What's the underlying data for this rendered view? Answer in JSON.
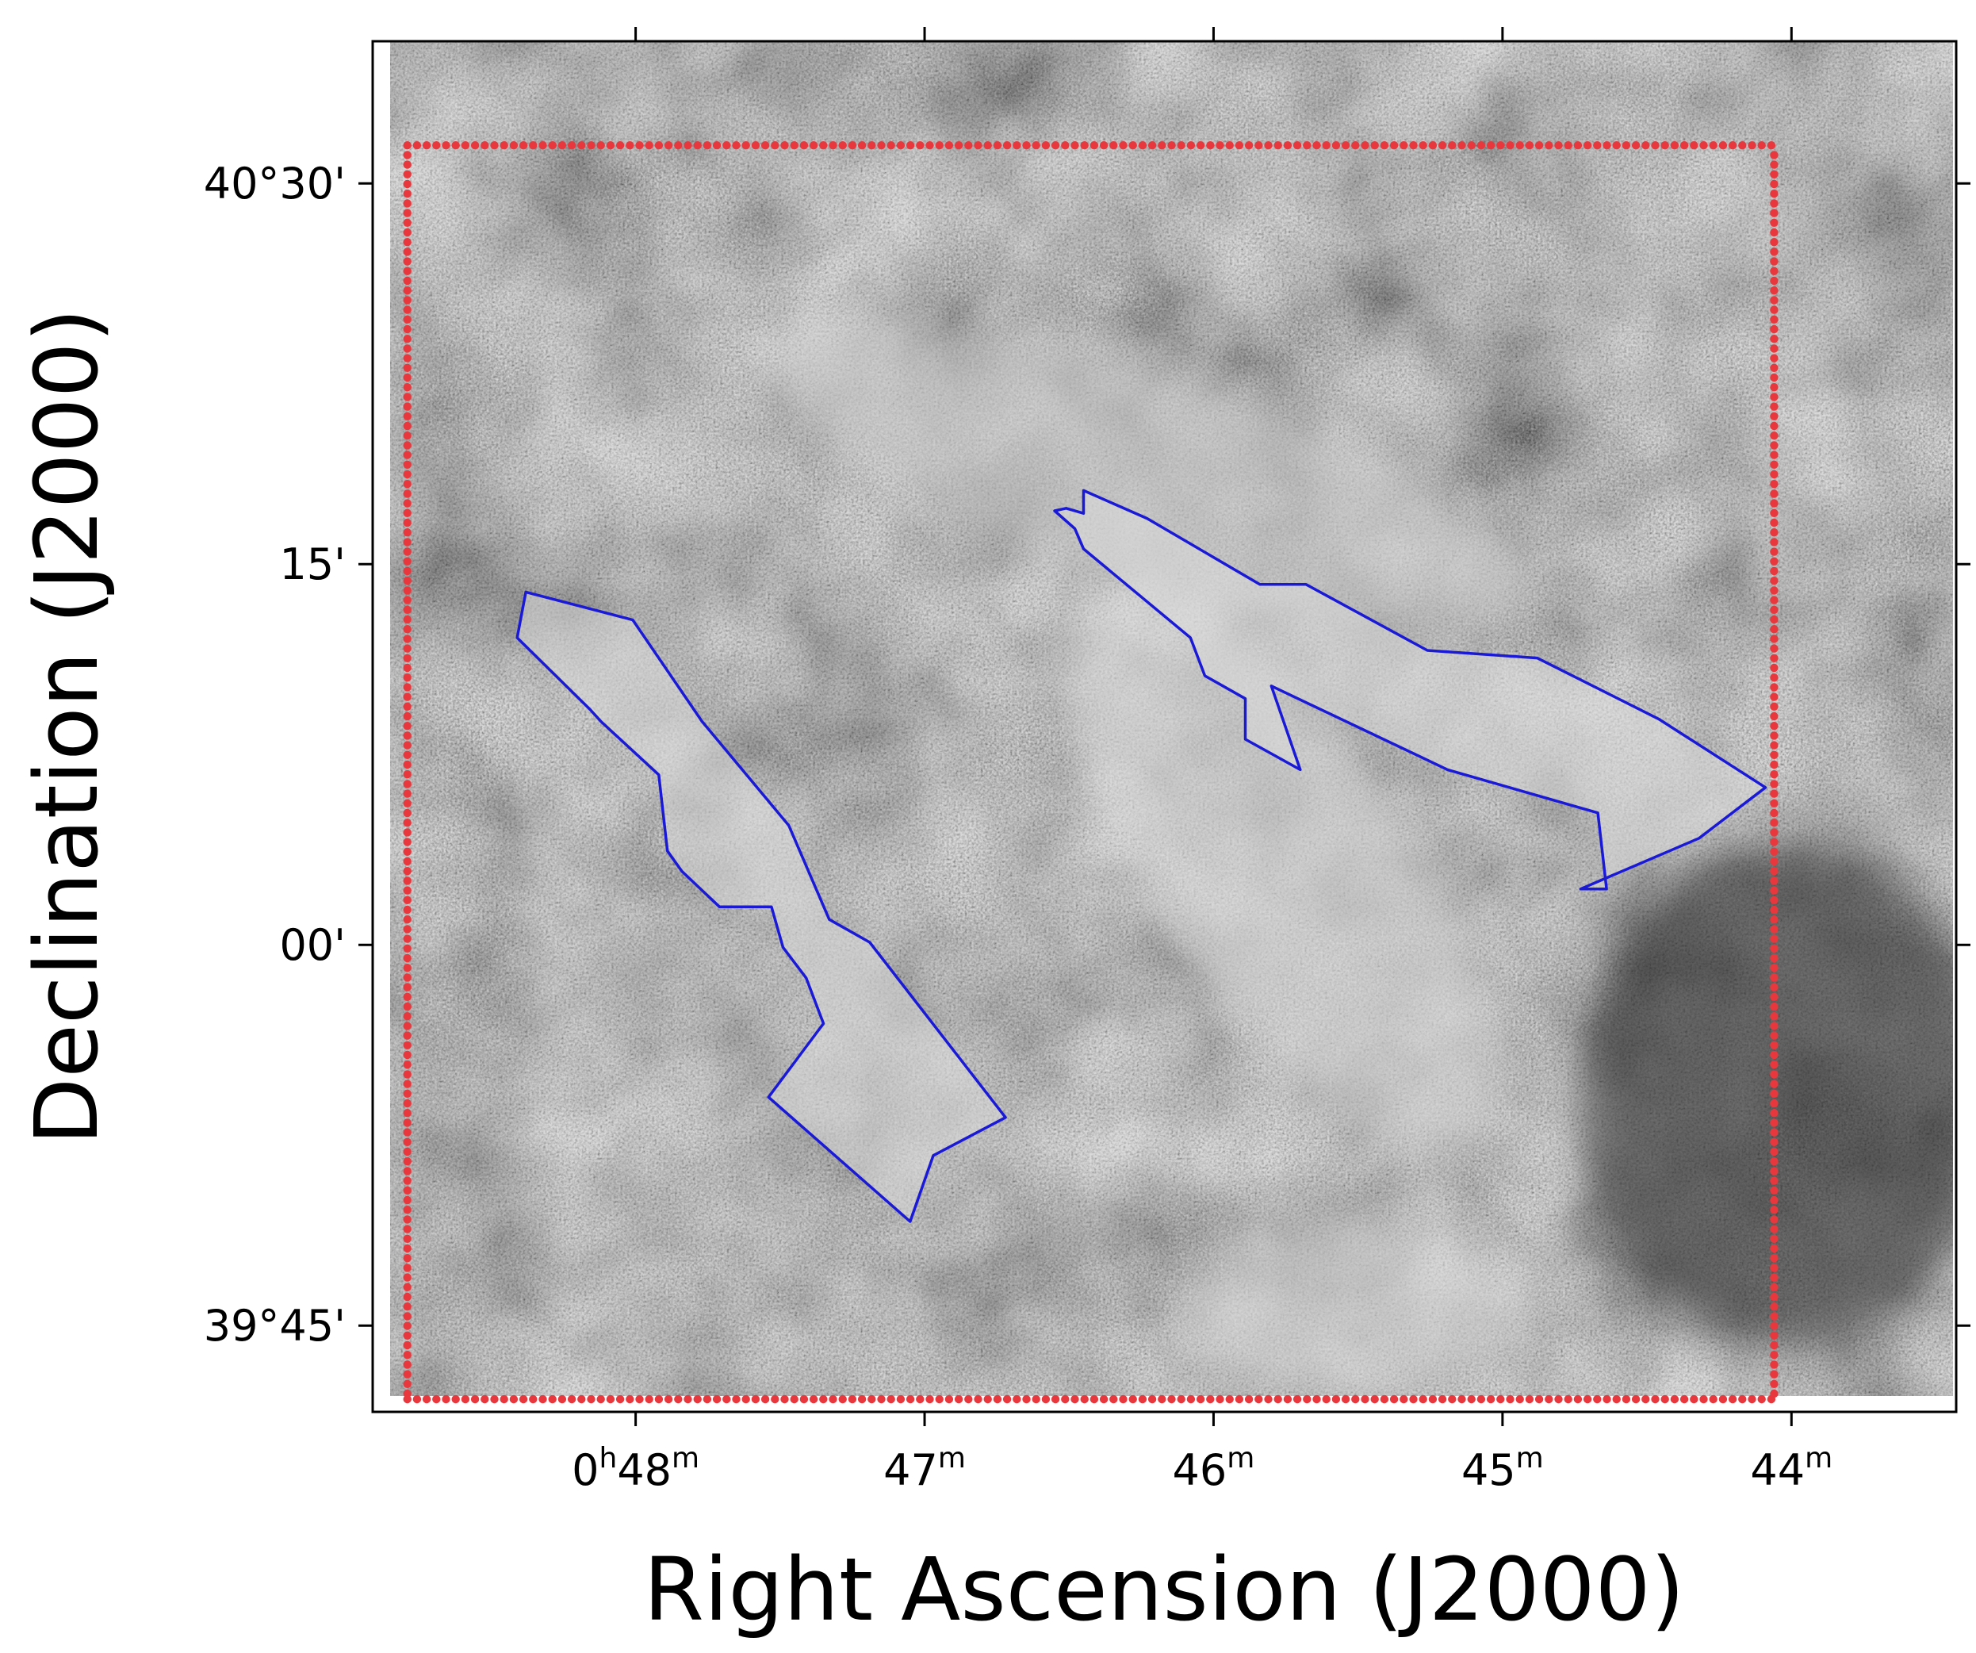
{
  "chart_data": {
    "type": "sky-image",
    "title": "",
    "xlabel": "Right Ascension (J2000)",
    "ylabel": "Declination (J2000)",
    "x_axis": {
      "unit": "minutes of RA (hours 0)",
      "range": [
        48.91,
        43.43
      ],
      "inverted": true,
      "ticks": [
        {
          "value": 48,
          "label": {
            "h": "0",
            "hsup": "h",
            "m": "48",
            "msup": "m"
          }
        },
        {
          "value": 47,
          "label": {
            "h": "",
            "hsup": "",
            "m": "47",
            "msup": "m"
          }
        },
        {
          "value": 46,
          "label": {
            "h": "",
            "hsup": "",
            "m": "46",
            "msup": "m"
          }
        },
        {
          "value": 45,
          "label": {
            "h": "",
            "hsup": "",
            "m": "45",
            "msup": "m"
          }
        },
        {
          "value": 44,
          "label": {
            "h": "",
            "hsup": "",
            "m": "44",
            "msup": "m"
          }
        }
      ]
    },
    "y_axis": {
      "unit": "arcmin offset from 40°00'",
      "range": [
        -18.4,
        35.6
      ],
      "ticks": [
        {
          "value": 30,
          "label": "40°30'"
        },
        {
          "value": 15,
          "label": "15'"
        },
        {
          "value": 0,
          "label": "00'"
        },
        {
          "value": -15,
          "label": "39°45'"
        }
      ]
    },
    "image": {
      "colormap": "grayscale",
      "background": "#6e6e6e"
    },
    "box": {
      "style": "dotted",
      "color": "#e8383d",
      "ra_min": [
        48.79,
        44.06
      ],
      "dec_arcmin": [
        -17.9,
        31.5
      ]
    },
    "polygons": {
      "color": "#1a1ad6",
      "regions": [
        {
          "vertices": [
            [
              48.38,
              13.9
            ],
            [
              48.01,
              12.8
            ],
            [
              47.77,
              8.8
            ],
            [
              47.47,
              4.7
            ],
            [
              47.33,
              1.0
            ],
            [
              47.19,
              0.1
            ],
            [
              46.72,
              -6.8
            ],
            [
              46.97,
              -8.3
            ],
            [
              47.05,
              -10.9
            ],
            [
              47.45,
              -6.9
            ],
            [
              47.54,
              -6.0
            ],
            [
              47.35,
              -3.1
            ],
            [
              47.41,
              -1.3
            ],
            [
              47.49,
              -0.1
            ],
            [
              47.53,
              1.5
            ],
            [
              47.71,
              1.5
            ],
            [
              47.84,
              2.9
            ],
            [
              47.89,
              3.7
            ],
            [
              47.92,
              6.7
            ],
            [
              48.12,
              8.8
            ],
            [
              48.16,
              9.3
            ],
            [
              48.41,
              12.1
            ],
            [
              48.38,
              13.9
            ]
          ]
        },
        {
          "vertices": [
            [
              46.45,
              17.9
            ],
            [
              46.23,
              16.8
            ],
            [
              45.84,
              14.2
            ],
            [
              45.68,
              14.2
            ],
            [
              45.26,
              11.6
            ],
            [
              44.88,
              11.3
            ],
            [
              44.46,
              8.9
            ],
            [
              44.09,
              6.2
            ],
            [
              44.32,
              4.2
            ],
            [
              44.73,
              2.2
            ],
            [
              44.64,
              2.2
            ],
            [
              44.67,
              5.2
            ],
            [
              45.19,
              6.9
            ],
            [
              45.8,
              10.2
            ],
            [
              45.7,
              6.9
            ],
            [
              45.89,
              8.1
            ],
            [
              45.89,
              9.7
            ],
            [
              46.03,
              10.6
            ],
            [
              46.08,
              12.1
            ],
            [
              46.45,
              15.6
            ],
            [
              46.48,
              16.4
            ],
            [
              46.55,
              17.1
            ],
            [
              46.51,
              17.2
            ],
            [
              46.45,
              17.0
            ],
            [
              46.45,
              17.9
            ]
          ]
        }
      ]
    }
  }
}
